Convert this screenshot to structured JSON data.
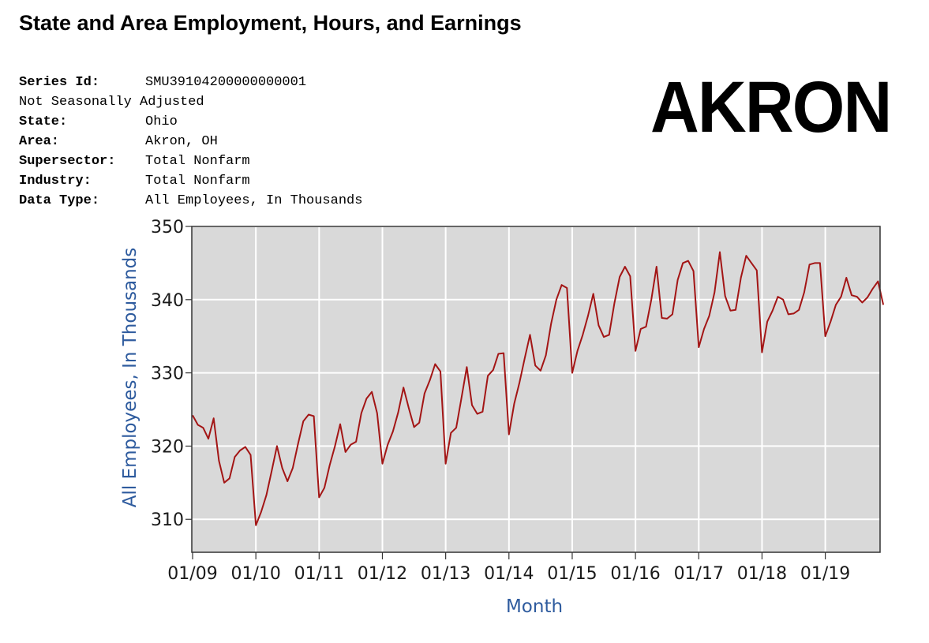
{
  "page": {
    "title": "State and Area Employment, Hours, and Earnings",
    "big_label": "AKRON"
  },
  "series_info": [
    {
      "label": "Series Id:",
      "value": "SMU39104200000000001"
    },
    {
      "label": "",
      "value": "Not Seasonally Adjusted"
    },
    {
      "label": "State:",
      "value": "Ohio"
    },
    {
      "label": "Area:",
      "value": "Akron, OH"
    },
    {
      "label": "Supersector:",
      "value": "Total Nonfarm"
    },
    {
      "label": "Industry:",
      "value": "Total Nonfarm"
    },
    {
      "label": "Data Type:",
      "value": "All Employees, In Thousands"
    }
  ],
  "colors": {
    "line": "#a31515",
    "plot_bg": "#d9d9d9",
    "grid": "#ffffff",
    "axis_title": "#2e5b9e"
  },
  "chart_data": {
    "type": "line",
    "xlabel": "Month",
    "ylabel": "All Employees, In Thousands",
    "x_tick_labels": [
      "01/09",
      "01/10",
      "01/11",
      "01/12",
      "01/13",
      "01/14",
      "01/15",
      "01/16",
      "01/17",
      "01/18",
      "01/19"
    ],
    "y_ticks": [
      310,
      320,
      330,
      340,
      350
    ],
    "ylim": [
      305.5,
      350
    ],
    "xlim": [
      "2009-01",
      "2019-12"
    ],
    "grid": true,
    "series": [
      {
        "start": "2009-01",
        "frequency": "monthly",
        "values": [
          324.2,
          322.9,
          322.5,
          321.0,
          323.8,
          318.0,
          315.0,
          315.6,
          318.5,
          319.4,
          319.9,
          318.8,
          309.2,
          311.0,
          313.3,
          316.6,
          320.0,
          317.0,
          315.2,
          317.0,
          320.3,
          323.4,
          324.3,
          324.1,
          313.0,
          314.3,
          317.4,
          320.0,
          323.0,
          319.2,
          320.2,
          320.6,
          324.5,
          326.5,
          327.4,
          324.5,
          317.6,
          320.2,
          322.0,
          324.6,
          328.0,
          325.2,
          322.6,
          323.2,
          327.2,
          329.0,
          331.2,
          330.2,
          317.6,
          321.8,
          322.5,
          326.6,
          330.8,
          325.6,
          324.4,
          324.7,
          329.6,
          330.4,
          332.6,
          332.7,
          321.6,
          325.8,
          328.7,
          332.0,
          335.2,
          331.0,
          330.3,
          332.4,
          336.7,
          340.0,
          342.0,
          341.6,
          330.0,
          333.0,
          335.2,
          337.8,
          340.8,
          336.5,
          334.9,
          335.2,
          339.5,
          343.1,
          344.5,
          343.2,
          333.0,
          336.0,
          336.3,
          340.0,
          344.5,
          337.5,
          337.4,
          338.0,
          342.7,
          345.0,
          345.3,
          343.9,
          333.5,
          336.0,
          337.8,
          341.0,
          346.5,
          340.5,
          338.5,
          338.6,
          343.0,
          346.0,
          345.0,
          344.0,
          332.8,
          337.0,
          338.5,
          340.4,
          340.0,
          338.0,
          338.1,
          338.6,
          341.0,
          344.8,
          345.0,
          345.0,
          335.0,
          337.0,
          339.3,
          340.4,
          343.0,
          340.6,
          340.4,
          339.6,
          340.3,
          341.5,
          342.5,
          339.3
        ]
      }
    ]
  }
}
